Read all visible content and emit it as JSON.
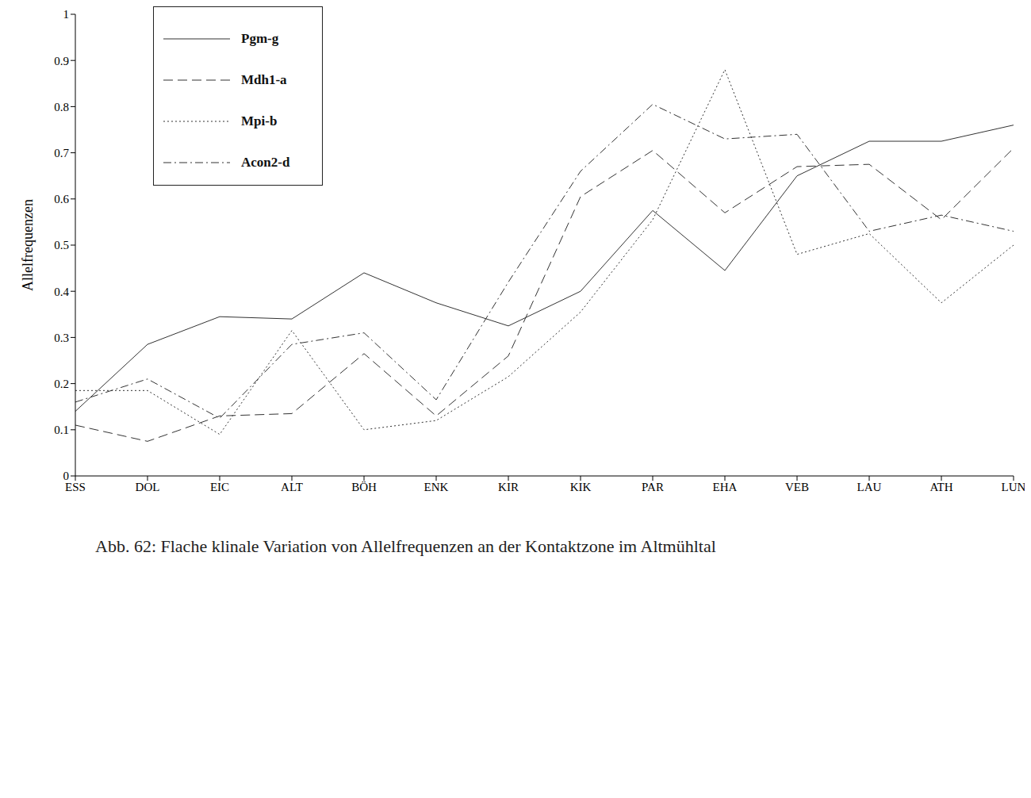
{
  "chart_data": {
    "type": "line",
    "title": "Abb. 62: Flache klinale Variation von Allelfrequenzen an der Kontaktzone im Altmühltal",
    "y_label": "Allelfrequenzen",
    "categories": [
      "ESS",
      "DOL",
      "EIC",
      "ALT",
      "BÖH",
      "ENK",
      "KIR",
      "KIK",
      "PAR",
      "EHA",
      "VEB",
      "LAU",
      "ATH",
      "LUN"
    ],
    "series": [
      {
        "name": "Pgm-g",
        "color": "#333333",
        "line_style": "solid",
        "values": [
          0.14,
          0.285,
          0.345,
          0.34,
          0.44,
          0.375,
          0.325,
          0.4,
          0.575,
          0.445,
          0.65,
          0.725,
          0.725,
          0.76
        ]
      },
      {
        "name": "Mdh1-a",
        "color": "#333333",
        "line_style": "dashed",
        "values": [
          0.11,
          0.075,
          0.13,
          0.135,
          0.265,
          0.13,
          0.26,
          0.605,
          0.705,
          0.57,
          0.67,
          0.675,
          0.555,
          0.71
        ]
      },
      {
        "name": "Mpi-b",
        "color": "#333333",
        "line_style": "dotted",
        "values": [
          0.185,
          0.185,
          0.09,
          0.315,
          0.1,
          0.12,
          0.215,
          0.355,
          0.555,
          0.88,
          0.48,
          0.525,
          0.375,
          0.5
        ]
      },
      {
        "name": "Acon2-d",
        "color": "#333333",
        "line_style": "dashdot",
        "values": [
          0.16,
          0.21,
          0.125,
          0.285,
          0.31,
          0.165,
          0.42,
          0.66,
          0.805,
          0.73,
          0.74,
          0.53,
          0.565,
          0.53
        ]
      }
    ],
    "ylim": [
      0,
      1
    ],
    "yticks": [
      0,
      0.1,
      0.2,
      0.3,
      0.4,
      0.5,
      0.6,
      0.7,
      0.8,
      0.9,
      1
    ],
    "grid": false,
    "legend": "top-left"
  }
}
